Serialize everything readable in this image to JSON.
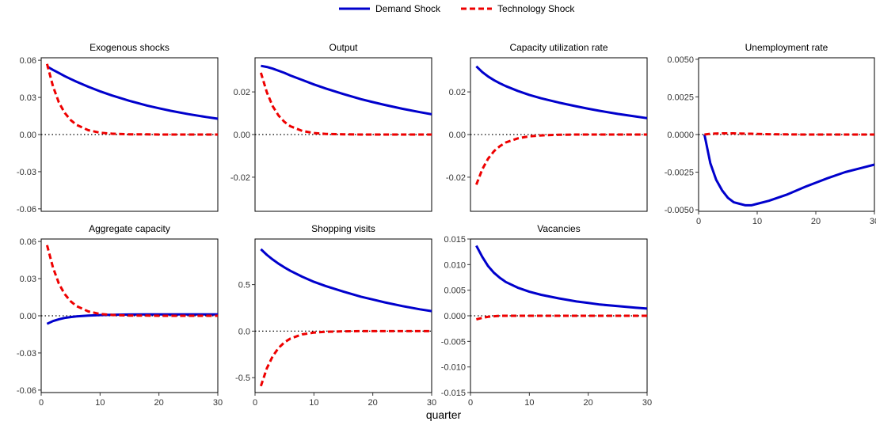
{
  "figure": {
    "xlabel": "quarter",
    "legend": [
      {
        "name": "Demand Shock",
        "color": "#0000cc",
        "dash": "solid"
      },
      {
        "name": "Technology Shock",
        "color": "#ee0000",
        "dash": "dashed"
      }
    ],
    "legend_position": "top-center"
  },
  "chart_data": [
    {
      "type": "line",
      "title": "Exogenous shocks",
      "xlim": [
        0,
        30
      ],
      "ylim": [
        -0.062,
        0.062
      ],
      "xticks": [],
      "yticks": [
        "-0.06",
        "-0.03",
        "0.00",
        "0.03",
        "0.06"
      ],
      "ytick_values": [
        -0.06,
        -0.03,
        0,
        0.03,
        0.06
      ],
      "x": [
        1,
        2,
        3,
        4,
        5,
        6,
        8,
        10,
        12,
        15,
        18,
        20,
        22,
        25,
        28,
        30
      ],
      "series": [
        {
          "name": "Demand Shock",
          "values": [
            0.055,
            0.0522,
            0.0497,
            0.0472,
            0.0449,
            0.0427,
            0.0386,
            0.0349,
            0.0316,
            0.0272,
            0.0234,
            0.0212,
            0.0192,
            0.0165,
            0.0142,
            0.0128
          ]
        },
        {
          "name": "Technology Shock",
          "values": [
            0.057,
            0.039,
            0.026,
            0.0175,
            0.0117,
            0.0078,
            0.0035,
            0.0015,
            0.0007,
            0.0002,
            0.0001,
            0,
            0,
            0,
            0,
            0
          ]
        }
      ]
    },
    {
      "type": "line",
      "title": "Output",
      "xlim": [
        0,
        30
      ],
      "ylim": [
        -0.036,
        0.036
      ],
      "xticks": [],
      "yticks": [
        "-0.02",
        "0.00",
        "0.02"
      ],
      "ytick_values": [
        -0.02,
        0,
        0.02
      ],
      "x": [
        1,
        2,
        3,
        4,
        5,
        6,
        8,
        10,
        12,
        15,
        18,
        20,
        22,
        25,
        28,
        30
      ],
      "series": [
        {
          "name": "Demand Shock",
          "values": [
            0.0322,
            0.0317,
            0.0309,
            0.0299,
            0.0289,
            0.0277,
            0.0256,
            0.0235,
            0.0216,
            0.019,
            0.0166,
            0.0152,
            0.0139,
            0.0121,
            0.0105,
            0.0095
          ]
        },
        {
          "name": "Technology Shock",
          "values": [
            0.029,
            0.0198,
            0.0133,
            0.0089,
            0.0059,
            0.0039,
            0.0017,
            0.0007,
            0.0003,
            0.0001,
            0,
            0,
            0,
            0,
            0,
            0
          ]
        }
      ]
    },
    {
      "type": "line",
      "title": "Capacity utilization rate",
      "xlim": [
        0,
        30
      ],
      "ylim": [
        -0.036,
        0.036
      ],
      "xticks": [],
      "yticks": [
        "-0.02",
        "0.00",
        "0.02"
      ],
      "ytick_values": [
        -0.02,
        0,
        0.02
      ],
      "x": [
        1,
        2,
        3,
        4,
        5,
        6,
        8,
        10,
        12,
        15,
        18,
        20,
        22,
        25,
        28,
        30
      ],
      "series": [
        {
          "name": "Demand Shock",
          "values": [
            0.032,
            0.0293,
            0.0272,
            0.0255,
            0.024,
            0.0227,
            0.0205,
            0.0186,
            0.017,
            0.015,
            0.0132,
            0.0121,
            0.0111,
            0.0097,
            0.0085,
            0.0077
          ]
        },
        {
          "name": "Technology Shock",
          "values": [
            -0.0235,
            -0.0163,
            -0.0113,
            -0.0078,
            -0.0054,
            -0.0037,
            -0.0018,
            -0.0008,
            -0.0004,
            -0.0001,
            0,
            0,
            0,
            0,
            0,
            0
          ]
        }
      ]
    },
    {
      "type": "line",
      "title": "Unemployment rate",
      "xlim": [
        0,
        30
      ],
      "ylim": [
        -0.0051,
        0.0051
      ],
      "xticks": [
        "0",
        "10",
        "20",
        "30"
      ],
      "xtick_values": [
        0,
        10,
        20,
        30
      ],
      "yticks": [
        "-0.0050",
        "-0.0025",
        "0.0000",
        "0.0025",
        "0.0050"
      ],
      "ytick_values": [
        -0.005,
        -0.0025,
        0,
        0.0025,
        0.005
      ],
      "x": [
        1,
        2,
        3,
        4,
        5,
        6,
        7,
        8,
        9,
        10,
        12,
        15,
        18,
        20,
        22,
        25,
        28,
        30
      ],
      "series": [
        {
          "name": "Demand Shock",
          "values": [
            0,
            -0.0019,
            -0.003,
            -0.0037,
            -0.0042,
            -0.0045,
            -0.0046,
            -0.0047,
            -0.0047,
            -0.0046,
            -0.0044,
            -0.004,
            -0.0035,
            -0.0032,
            -0.0029,
            -0.0025,
            -0.0022,
            -0.002
          ]
        },
        {
          "name": "Technology Shock",
          "values": [
            0,
            5e-05,
            7e-05,
            8e-05,
            8e-05,
            8e-05,
            7e-05,
            6e-05,
            5e-05,
            4e-05,
            2e-05,
            1e-05,
            0,
            0,
            0,
            0,
            0,
            0
          ]
        }
      ]
    },
    {
      "type": "line",
      "title": "Aggregate capacity",
      "xlim": [
        0,
        30
      ],
      "ylim": [
        -0.062,
        0.062
      ],
      "xticks": [
        "0",
        "10",
        "20",
        "30"
      ],
      "xtick_values": [
        0,
        10,
        20,
        30
      ],
      "yticks": [
        "-0.06",
        "-0.03",
        "0.00",
        "0.03",
        "0.06"
      ],
      "ytick_values": [
        -0.06,
        -0.03,
        0,
        0.03,
        0.06
      ],
      "x": [
        1,
        2,
        3,
        4,
        5,
        6,
        8,
        10,
        12,
        15,
        18,
        20,
        22,
        25,
        28,
        30
      ],
      "series": [
        {
          "name": "Demand Shock",
          "values": [
            -0.0065,
            -0.0043,
            -0.0028,
            -0.0017,
            -0.001,
            -0.0005,
            0.0002,
            0.0006,
            0.0008,
            0.001,
            0.0011,
            0.0011,
            0.0011,
            0.0011,
            0.0011,
            0.0011
          ]
        },
        {
          "name": "Technology Shock",
          "values": [
            0.057,
            0.039,
            0.026,
            0.0175,
            0.0117,
            0.0078,
            0.0035,
            0.0015,
            0.0007,
            0.0002,
            0.0001,
            0,
            0,
            0,
            0,
            0
          ]
        }
      ]
    },
    {
      "type": "line",
      "title": "Shopping visits",
      "xlim": [
        0,
        30
      ],
      "ylim": [
        -0.66,
        0.99
      ],
      "xticks": [
        "0",
        "10",
        "20",
        "30"
      ],
      "xtick_values": [
        0,
        10,
        20,
        30
      ],
      "yticks": [
        "-0.5",
        "0.0",
        "0.5"
      ],
      "ytick_values": [
        -0.5,
        0,
        0.5
      ],
      "x": [
        1,
        2,
        3,
        4,
        5,
        6,
        8,
        10,
        12,
        15,
        18,
        20,
        22,
        25,
        28,
        30
      ],
      "series": [
        {
          "name": "Demand Shock",
          "values": [
            0.88,
            0.82,
            0.77,
            0.725,
            0.685,
            0.648,
            0.585,
            0.53,
            0.485,
            0.425,
            0.37,
            0.34,
            0.31,
            0.27,
            0.235,
            0.215
          ]
        },
        {
          "name": "Technology Shock",
          "values": [
            -0.59,
            -0.4,
            -0.27,
            -0.18,
            -0.12,
            -0.08,
            -0.035,
            -0.015,
            -0.007,
            -0.002,
            0,
            0,
            0,
            0,
            0,
            0
          ]
        }
      ]
    },
    {
      "type": "line",
      "title": "Vacancies",
      "xlim": [
        0,
        30
      ],
      "ylim": [
        -0.015,
        0.015
      ],
      "xticks": [
        "0",
        "10",
        "20",
        "30"
      ],
      "xtick_values": [
        0,
        10,
        20,
        30
      ],
      "yticks": [
        "-0.015",
        "-0.010",
        "-0.005",
        "0.000",
        "0.005",
        "0.010",
        "0.015"
      ],
      "ytick_values": [
        -0.015,
        -0.01,
        -0.005,
        0,
        0.005,
        0.01,
        0.015
      ],
      "x": [
        1,
        2,
        3,
        4,
        5,
        6,
        8,
        10,
        12,
        15,
        18,
        20,
        22,
        25,
        28,
        30
      ],
      "series": [
        {
          "name": "Demand Shock",
          "values": [
            0.0137,
            0.0115,
            0.0097,
            0.0084,
            0.0074,
            0.0066,
            0.0055,
            0.0047,
            0.0041,
            0.0034,
            0.0028,
            0.0025,
            0.0022,
            0.0019,
            0.0016,
            0.0014
          ]
        },
        {
          "name": "Technology Shock",
          "values": [
            -0.0007,
            -0.0004,
            -0.0002,
            -0.0001,
            0,
            0,
            0,
            0,
            0,
            0,
            0,
            0,
            0,
            0,
            0,
            0
          ]
        }
      ]
    }
  ]
}
